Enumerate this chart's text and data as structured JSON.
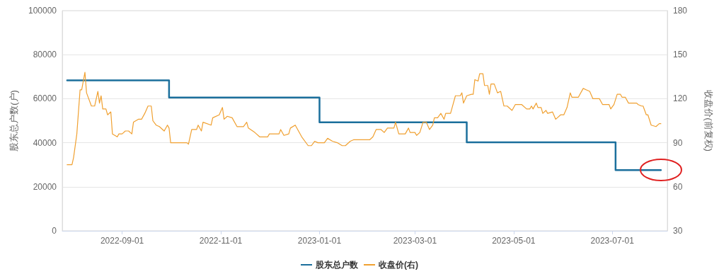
{
  "chart_data": {
    "type": "line",
    "xlabel": null,
    "ylabel": "股东总户数(户)",
    "y2label": "收盘价(前复权)",
    "xlim": [
      "2022-07-26",
      "2023-08-04"
    ],
    "xticks": [
      "2022-09-01",
      "2022-11-01",
      "2023-01-01",
      "2023-03-01",
      "2023-05-01",
      "2023-07-01"
    ],
    "ylim": [
      0,
      100000
    ],
    "yticks": [
      0,
      20000,
      40000,
      60000,
      80000,
      100000
    ],
    "y2lim": [
      30,
      180
    ],
    "y2ticks": [
      30,
      60,
      90,
      120,
      150,
      180
    ],
    "grid": "y",
    "legend": "bottom",
    "marker": "none",
    "line_style": "solid",
    "series": [
      {
        "name": "股东总户数",
        "type": "step",
        "color": "#1b6f9c",
        "x": [
          "2022-07-29",
          "2022-09-30",
          "2023-01-01",
          "2023-04-02",
          "2023-07-03",
          "2023-07-31"
        ],
        "values": [
          68300,
          60500,
          49300,
          40200,
          27600,
          27600
        ]
      },
      {
        "name": "收盘价(右)",
        "axis": "y2",
        "color": "#f0a030",
        "x": [
          "2022-07-29",
          "2022-08-01",
          "2022-08-02",
          "2022-08-04",
          "2022-08-06",
          "2022-08-07",
          "2022-08-09",
          "2022-08-10",
          "2022-08-13",
          "2022-08-15",
          "2022-08-17",
          "2022-08-18",
          "2022-08-19",
          "2022-08-20",
          "2022-08-22",
          "2022-08-23",
          "2022-08-25",
          "2022-08-26",
          "2022-08-29",
          "2022-08-30",
          "2022-09-01",
          "2022-09-03",
          "2022-09-05",
          "2022-09-07",
          "2022-09-08",
          "2022-09-11",
          "2022-09-13",
          "2022-09-15",
          "2022-09-17",
          "2022-09-19",
          "2022-09-20",
          "2022-09-22",
          "2022-09-24",
          "2022-09-27",
          "2022-09-29",
          "2022-09-30",
          "2022-10-01",
          "2022-10-11",
          "2022-10-12",
          "2022-10-14",
          "2022-10-17",
          "2022-10-18",
          "2022-10-20",
          "2022-10-21",
          "2022-10-26",
          "2022-10-27",
          "2022-10-31",
          "2022-11-02",
          "2022-11-03",
          "2022-11-05",
          "2022-11-08",
          "2022-11-11",
          "2022-11-15",
          "2022-11-17",
          "2022-11-18",
          "2022-11-22",
          "2022-11-25",
          "2022-11-30",
          "2022-12-01",
          "2022-12-03",
          "2022-12-07",
          "2022-12-08",
          "2022-12-10",
          "2022-12-13",
          "2022-12-14",
          "2022-12-17",
          "2022-12-19",
          "2022-12-21",
          "2022-12-25",
          "2022-12-27",
          "2022-12-29",
          "2022-12-31",
          "2023-01-04",
          "2023-01-06",
          "2023-01-09",
          "2023-01-12",
          "2023-01-15",
          "2023-01-17",
          "2023-01-20",
          "2023-01-22",
          "2023-02-01",
          "2023-02-03",
          "2023-02-05",
          "2023-02-08",
          "2023-02-10",
          "2023-02-12",
          "2023-02-16",
          "2023-02-17",
          "2023-02-19",
          "2023-02-23",
          "2023-02-25",
          "2023-02-26",
          "2023-03-01",
          "2023-03-02",
          "2023-03-04",
          "2023-03-06",
          "2023-03-08",
          "2023-03-10",
          "2023-03-12",
          "2023-03-13",
          "2023-03-15",
          "2023-03-17",
          "2023-03-19",
          "2023-03-20",
          "2023-03-23",
          "2023-03-24",
          "2023-03-26",
          "2023-03-29",
          "2023-03-30",
          "2023-03-31",
          "2023-04-02",
          "2023-04-05",
          "2023-04-06",
          "2023-04-07",
          "2023-04-09",
          "2023-04-10",
          "2023-04-12",
          "2023-04-13",
          "2023-04-15",
          "2023-04-16",
          "2023-04-17",
          "2023-04-19",
          "2023-04-21",
          "2023-04-23",
          "2023-04-25",
          "2023-04-27",
          "2023-04-30",
          "2023-05-02",
          "2023-05-06",
          "2023-05-09",
          "2023-05-11",
          "2023-05-12",
          "2023-05-13",
          "2023-05-15",
          "2023-05-16",
          "2023-05-18",
          "2023-05-19",
          "2023-05-21",
          "2023-05-22",
          "2023-05-25",
          "2023-05-27",
          "2023-05-28",
          "2023-05-30",
          "2023-06-01",
          "2023-06-03",
          "2023-06-05",
          "2023-06-06",
          "2023-06-07",
          "2023-06-10",
          "2023-06-13",
          "2023-06-15",
          "2023-06-17",
          "2023-06-19",
          "2023-06-23",
          "2023-06-25",
          "2023-06-29",
          "2023-06-30",
          "2023-07-02",
          "2023-07-04",
          "2023-07-06",
          "2023-07-07",
          "2023-07-09",
          "2023-07-11",
          "2023-07-15",
          "2023-07-16",
          "2023-07-17",
          "2023-07-19",
          "2023-07-20",
          "2023-07-22",
          "2023-07-23",
          "2023-07-25",
          "2023-07-28",
          "2023-07-30",
          "2023-07-31"
        ],
        "values": [
          75,
          75,
          80,
          96,
          126,
          126,
          138,
          124,
          115,
          115,
          125,
          117,
          122,
          113,
          113,
          109,
          111,
          96,
          94,
          96,
          96,
          98,
          98,
          96,
          104,
          106,
          106,
          110,
          115,
          115,
          105,
          102,
          101,
          98,
          102,
          100,
          90,
          90,
          89,
          99,
          99,
          102,
          98,
          104,
          102,
          107,
          109,
          114,
          106,
          108,
          107,
          101,
          101,
          104,
          100,
          97,
          94,
          94,
          96,
          96,
          96,
          99,
          95,
          96,
          100,
          102,
          98,
          94,
          88,
          88,
          91,
          90,
          90,
          93,
          91,
          90,
          88,
          88,
          91,
          92,
          92,
          94,
          99,
          99,
          97,
          100,
          100,
          104,
          96,
          96,
          100,
          97,
          97,
          95,
          97,
          104,
          104,
          99,
          102,
          107,
          107,
          110,
          106,
          110,
          110,
          114,
          122,
          122,
          124,
          117,
          122,
          123,
          123,
          133,
          132,
          137,
          137,
          129,
          129,
          123,
          130,
          130,
          124,
          125,
          115,
          115,
          112,
          116,
          116,
          113,
          113,
          115,
          113,
          117,
          114,
          114,
          110,
          112,
          110,
          111,
          106,
          107,
          109,
          109,
          114,
          124,
          121,
          121,
          121,
          127,
          126,
          125,
          120,
          120,
          116,
          116,
          113,
          116,
          123,
          123,
          121,
          121,
          117,
          117,
          117,
          116,
          115,
          115,
          109,
          109,
          102,
          101,
          103,
          103
        ]
      }
    ]
  }
}
